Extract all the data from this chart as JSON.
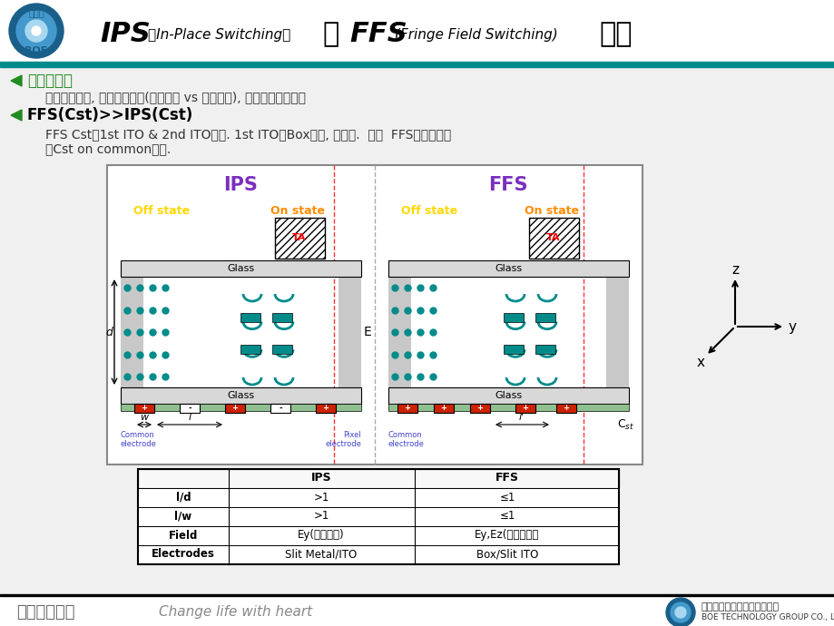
{
  "slide_bg": "#f0f0f0",
  "header_bg": "#ffffff",
  "teal_bar": "#008B8B",
  "title_ips": "IPS",
  "title_sub1": " （In-Place Switching） ",
  "title_and": "和",
  "title_ffs": "FFS",
  "title_sub2": " (Fringe Field Switching) ",
  "title_end": "比较",
  "bullet1_marker_color": "#228B22",
  "bullet1_label": "电场分布：",
  "bullet1_text": "电极分布不同, 电场方向不同(平面电场 vs 边缘电场), 电场有效面积不同",
  "bullet2_label": "FFS(Cst)>>IPS(Cst)",
  "bullet2_text1": "FFS Cst化1st ITO & 2nd ITO组成. 1st ITO是Box形状, 面积大.  因此  FFS产品只能采",
  "bullet2_text2": "用Cst on common方式.",
  "ips_color": "#7B2FBE",
  "ffs_color": "#7B2FBE",
  "off_color": "#FFD700",
  "on_color": "#FF8C00",
  "teal_lc": "#008B8B",
  "red_elec": "#CC2200",
  "green_ito": "#228B22",
  "table_headers": [
    "",
    "IPS",
    "FFS"
  ],
  "table_rows": [
    [
      "l/d",
      ">1",
      "≤1"
    ],
    [
      "l/w",
      ">1",
      "≤1"
    ],
    [
      "Field",
      "Ey(平面电场)",
      "Ey,Ez(边缘电场）"
    ],
    [
      "Electrodes",
      "Slit Metal/ITO",
      "Box/Slit ITO"
    ]
  ],
  "footer_slogan_en": "Change life with heart",
  "footer_company": "京东方科技集团股份有限公司",
  "footer_company_en": "BOE TECHNOLOGY GROUP CO., LTD"
}
